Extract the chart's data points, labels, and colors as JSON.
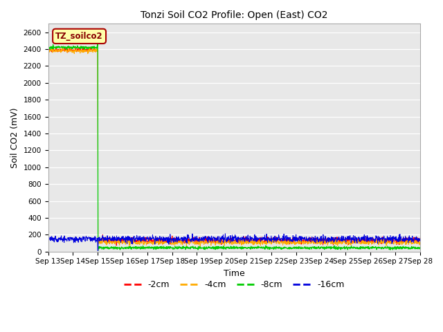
{
  "title": "Tonzi Soil CO2 Profile: Open (East) CO2",
  "xlabel": "Time",
  "ylabel": "Soil CO2 (mV)",
  "ylim": [
    0,
    2700
  ],
  "yticks": [
    0,
    200,
    400,
    600,
    800,
    1000,
    1200,
    1400,
    1600,
    1800,
    2000,
    2200,
    2400,
    2600
  ],
  "fig_bg_color": "#ffffff",
  "plot_bg_color": "#e8e8e8",
  "legend_label": "TZ_soilco2",
  "legend_bg": "#ffffaa",
  "legend_border": "#aa0000",
  "series": [
    {
      "label": "-2cm",
      "color": "#ff0000"
    },
    {
      "label": "-4cm",
      "color": "#ffaa00"
    },
    {
      "label": "-8cm",
      "color": "#00cc00"
    },
    {
      "label": "-16cm",
      "color": "#0000dd"
    }
  ],
  "n_days": 15,
  "start_day": 13,
  "pre_spike_days": 2,
  "spike_value_2cm": 2390,
  "spike_value_8cm": 2420,
  "post_value_2cm": 130,
  "post_value_4cm": 110,
  "post_value_8cm": 45,
  "post_value_16cm": 150
}
